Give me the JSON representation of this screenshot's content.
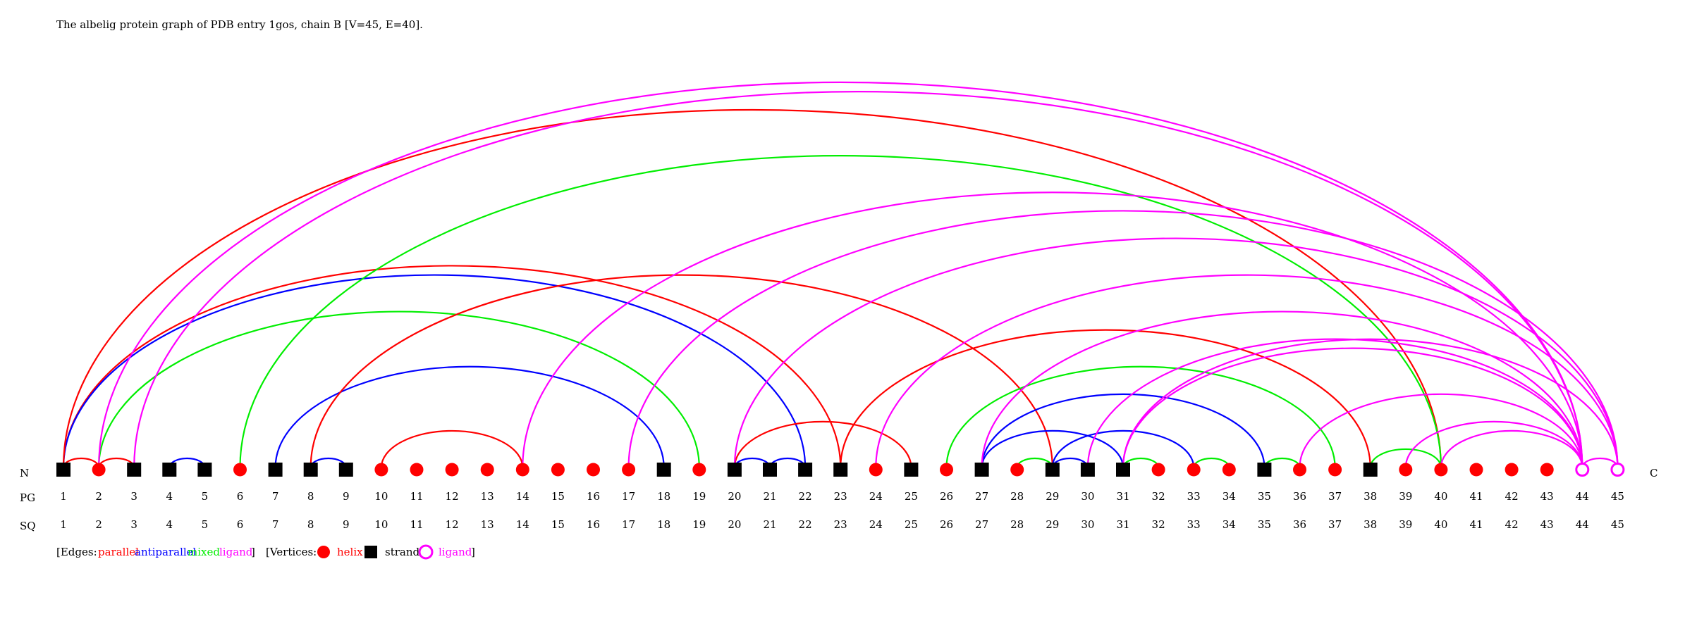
{
  "title": "The albelig protein graph of PDB entry 1gos, chain B [V=45, E=40].",
  "labels": {
    "n_term": "N",
    "c_term": "C",
    "pg": "PG",
    "sq": "SQ"
  },
  "colors": {
    "parallel": "#ff0000",
    "antiparallel": "#0000ff",
    "mixed": "#00ee00",
    "ligand": "#ff00ff",
    "helix": "#ff0000",
    "strand": "#000000"
  },
  "vertices": [
    {
      "id": 1,
      "type": "strand",
      "pg": "1",
      "sq": "1"
    },
    {
      "id": 2,
      "type": "helix",
      "pg": "2",
      "sq": "2"
    },
    {
      "id": 3,
      "type": "strand",
      "pg": "3",
      "sq": "3"
    },
    {
      "id": 4,
      "type": "strand",
      "pg": "4",
      "sq": "4"
    },
    {
      "id": 5,
      "type": "strand",
      "pg": "5",
      "sq": "5"
    },
    {
      "id": 6,
      "type": "helix",
      "pg": "6",
      "sq": "6"
    },
    {
      "id": 7,
      "type": "strand",
      "pg": "7",
      "sq": "7"
    },
    {
      "id": 8,
      "type": "strand",
      "pg": "8",
      "sq": "8"
    },
    {
      "id": 9,
      "type": "strand",
      "pg": "9",
      "sq": "9"
    },
    {
      "id": 10,
      "type": "helix",
      "pg": "10",
      "sq": "10"
    },
    {
      "id": 11,
      "type": "helix",
      "pg": "11",
      "sq": "11"
    },
    {
      "id": 12,
      "type": "helix",
      "pg": "12",
      "sq": "12"
    },
    {
      "id": 13,
      "type": "helix",
      "pg": "13",
      "sq": "13"
    },
    {
      "id": 14,
      "type": "helix",
      "pg": "14",
      "sq": "14"
    },
    {
      "id": 15,
      "type": "helix",
      "pg": "15",
      "sq": "15"
    },
    {
      "id": 16,
      "type": "helix",
      "pg": "16",
      "sq": "16"
    },
    {
      "id": 17,
      "type": "helix",
      "pg": "17",
      "sq": "17"
    },
    {
      "id": 18,
      "type": "strand",
      "pg": "18",
      "sq": "18"
    },
    {
      "id": 19,
      "type": "helix",
      "pg": "19",
      "sq": "19"
    },
    {
      "id": 20,
      "type": "strand",
      "pg": "20",
      "sq": "20"
    },
    {
      "id": 21,
      "type": "strand",
      "pg": "21",
      "sq": "21"
    },
    {
      "id": 22,
      "type": "strand",
      "pg": "22",
      "sq": "22"
    },
    {
      "id": 23,
      "type": "strand",
      "pg": "23",
      "sq": "23"
    },
    {
      "id": 24,
      "type": "helix",
      "pg": "24",
      "sq": "24"
    },
    {
      "id": 25,
      "type": "strand",
      "pg": "25",
      "sq": "25"
    },
    {
      "id": 26,
      "type": "helix",
      "pg": "26",
      "sq": "26"
    },
    {
      "id": 27,
      "type": "strand",
      "pg": "27",
      "sq": "27"
    },
    {
      "id": 28,
      "type": "helix",
      "pg": "28",
      "sq": "28"
    },
    {
      "id": 29,
      "type": "strand",
      "pg": "29",
      "sq": "29"
    },
    {
      "id": 30,
      "type": "strand",
      "pg": "30",
      "sq": "30"
    },
    {
      "id": 31,
      "type": "strand",
      "pg": "31",
      "sq": "31"
    },
    {
      "id": 32,
      "type": "helix",
      "pg": "32",
      "sq": "32"
    },
    {
      "id": 33,
      "type": "helix",
      "pg": "33",
      "sq": "33"
    },
    {
      "id": 34,
      "type": "helix",
      "pg": "34",
      "sq": "34"
    },
    {
      "id": 35,
      "type": "strand",
      "pg": "35",
      "sq": "35"
    },
    {
      "id": 36,
      "type": "helix",
      "pg": "36",
      "sq": "36"
    },
    {
      "id": 37,
      "type": "helix",
      "pg": "37",
      "sq": "37"
    },
    {
      "id": 38,
      "type": "strand",
      "pg": "38",
      "sq": "38"
    },
    {
      "id": 39,
      "type": "helix",
      "pg": "39",
      "sq": "39"
    },
    {
      "id": 40,
      "type": "helix",
      "pg": "40",
      "sq": "40"
    },
    {
      "id": 41,
      "type": "helix",
      "pg": "41",
      "sq": "41"
    },
    {
      "id": 42,
      "type": "helix",
      "pg": "42",
      "sq": "42"
    },
    {
      "id": 43,
      "type": "helix",
      "pg": "43",
      "sq": "43"
    },
    {
      "id": 44,
      "type": "ligand",
      "pg": "44",
      "sq": "44"
    },
    {
      "id": 45,
      "type": "ligand",
      "pg": "45",
      "sq": "45"
    }
  ],
  "edges": [
    {
      "a": 1,
      "b": 2,
      "type": "parallel"
    },
    {
      "a": 1,
      "b": 23,
      "type": "parallel"
    },
    {
      "a": 1,
      "b": 22,
      "type": "antiparallel"
    },
    {
      "a": 1,
      "b": 40,
      "type": "parallel"
    },
    {
      "a": 2,
      "b": 3,
      "type": "parallel"
    },
    {
      "a": 2,
      "b": 19,
      "type": "mixed"
    },
    {
      "a": 2,
      "b": 44,
      "type": "ligand"
    },
    {
      "a": 3,
      "b": 44,
      "type": "ligand"
    },
    {
      "a": 4,
      "b": 5,
      "type": "antiparallel"
    },
    {
      "a": 6,
      "b": 40,
      "type": "mixed"
    },
    {
      "a": 7,
      "b": 18,
      "type": "antiparallel"
    },
    {
      "a": 8,
      "b": 9,
      "type": "antiparallel"
    },
    {
      "a": 8,
      "b": 29,
      "type": "parallel"
    },
    {
      "a": 10,
      "b": 14,
      "type": "parallel"
    },
    {
      "a": 14,
      "b": 44,
      "type": "ligand"
    },
    {
      "a": 17,
      "b": 45,
      "type": "ligand"
    },
    {
      "a": 20,
      "b": 21,
      "type": "antiparallel"
    },
    {
      "a": 20,
      "b": 25,
      "type": "parallel"
    },
    {
      "a": 20,
      "b": 45,
      "type": "ligand"
    },
    {
      "a": 21,
      "b": 22,
      "type": "antiparallel"
    },
    {
      "a": 23,
      "b": 38,
      "type": "parallel"
    },
    {
      "a": 24,
      "b": 45,
      "type": "ligand"
    },
    {
      "a": 26,
      "b": 37,
      "type": "mixed"
    },
    {
      "a": 27,
      "b": 31,
      "type": "antiparallel"
    },
    {
      "a": 27,
      "b": 35,
      "type": "antiparallel"
    },
    {
      "a": 27,
      "b": 44,
      "type": "ligand"
    },
    {
      "a": 28,
      "b": 29,
      "type": "mixed"
    },
    {
      "a": 29,
      "b": 30,
      "type": "antiparallel"
    },
    {
      "a": 29,
      "b": 33,
      "type": "antiparallel"
    },
    {
      "a": 30,
      "b": 44,
      "type": "ligand"
    },
    {
      "a": 31,
      "b": 32,
      "type": "mixed"
    },
    {
      "a": 31,
      "b": 44,
      "type": "ligand"
    },
    {
      "a": 31,
      "b": 45,
      "type": "ligand"
    },
    {
      "a": 33,
      "b": 34,
      "type": "mixed"
    },
    {
      "a": 35,
      "b": 36,
      "type": "mixed"
    },
    {
      "a": 36,
      "b": 44,
      "type": "ligand"
    },
    {
      "a": 38,
      "b": 40,
      "type": "mixed"
    },
    {
      "a": 39,
      "b": 44,
      "type": "ligand"
    },
    {
      "a": 40,
      "b": 44,
      "type": "ligand"
    },
    {
      "a": 44,
      "b": 45,
      "type": "ligand"
    }
  ],
  "legend": {
    "edges_open": "[Edges:",
    "parallel": "parallel",
    "antiparallel": "antiparallel",
    "mixed": "mixed",
    "ligand": "ligand",
    "edges_close": "]",
    "vertices_open": "[Vertices:",
    "helix": "helix",
    "strand": "strand",
    "ligand_vertex": "ligand",
    "vertices_close": "]"
  }
}
